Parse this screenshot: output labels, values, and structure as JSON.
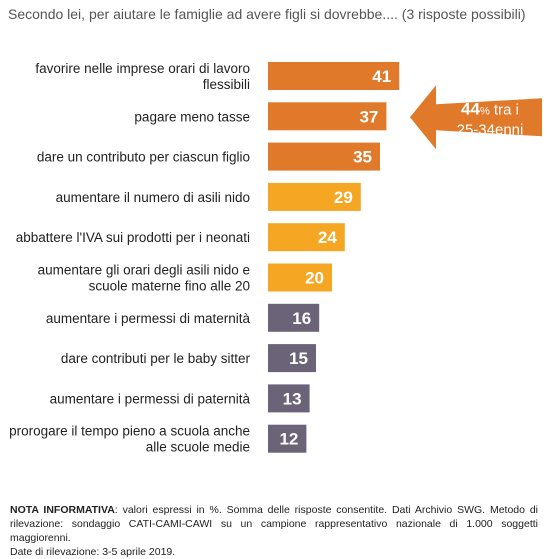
{
  "title": "Secondo lei, per aiutare le famiglie ad avere figli si dovrebbe.... (3 risposte possibili)",
  "chart_data": {
    "type": "bar",
    "orientation": "horizontal",
    "categories": [
      [
        "favorire nelle imprese orari di lavoro",
        "flessibili"
      ],
      [
        "pagare meno tasse"
      ],
      [
        "dare un contributo per ciascun figlio"
      ],
      [
        "aumentare il numero di asili nido"
      ],
      [
        "abbattere l'IVA sui prodotti per i neonati"
      ],
      [
        "aumentare gli orari degli asili nido e",
        "scuole materne fino alle 20"
      ],
      [
        "aumentare i permessi di maternità"
      ],
      [
        "dare contributi per le baby sitter"
      ],
      [
        "aumentare i permessi di paternità"
      ],
      [
        "prorogare il tempo pieno a scuola anche",
        "alle scuole medie"
      ]
    ],
    "values": [
      41,
      37,
      35,
      29,
      24,
      20,
      16,
      15,
      13,
      12
    ],
    "unit": "%",
    "colors": [
      "#e07a2a",
      "#e07a2a",
      "#e07a2a",
      "#f5a623",
      "#f5a623",
      "#f5a623",
      "#6b6478",
      "#6b6478",
      "#6b6478",
      "#6b6478"
    ],
    "callout": {
      "value": "44",
      "unit": "%",
      "text1": "tra i",
      "text2": "25-34enni",
      "color": "#e07a2a"
    }
  },
  "note": {
    "label": "NOTA INFORMATIVA",
    "line1": ": valori espressi in %. Somma delle risposte consentite. Dati Archivio SWG. Metodo di",
    "line2": "rilevazione: sondaggio CATI-CAMI-CAWI su un campione rappresentativo nazionale di 1.000 soggetti maggiorenni.",
    "line3": "Date di rilevazione: 3-5 aprile 2019."
  }
}
